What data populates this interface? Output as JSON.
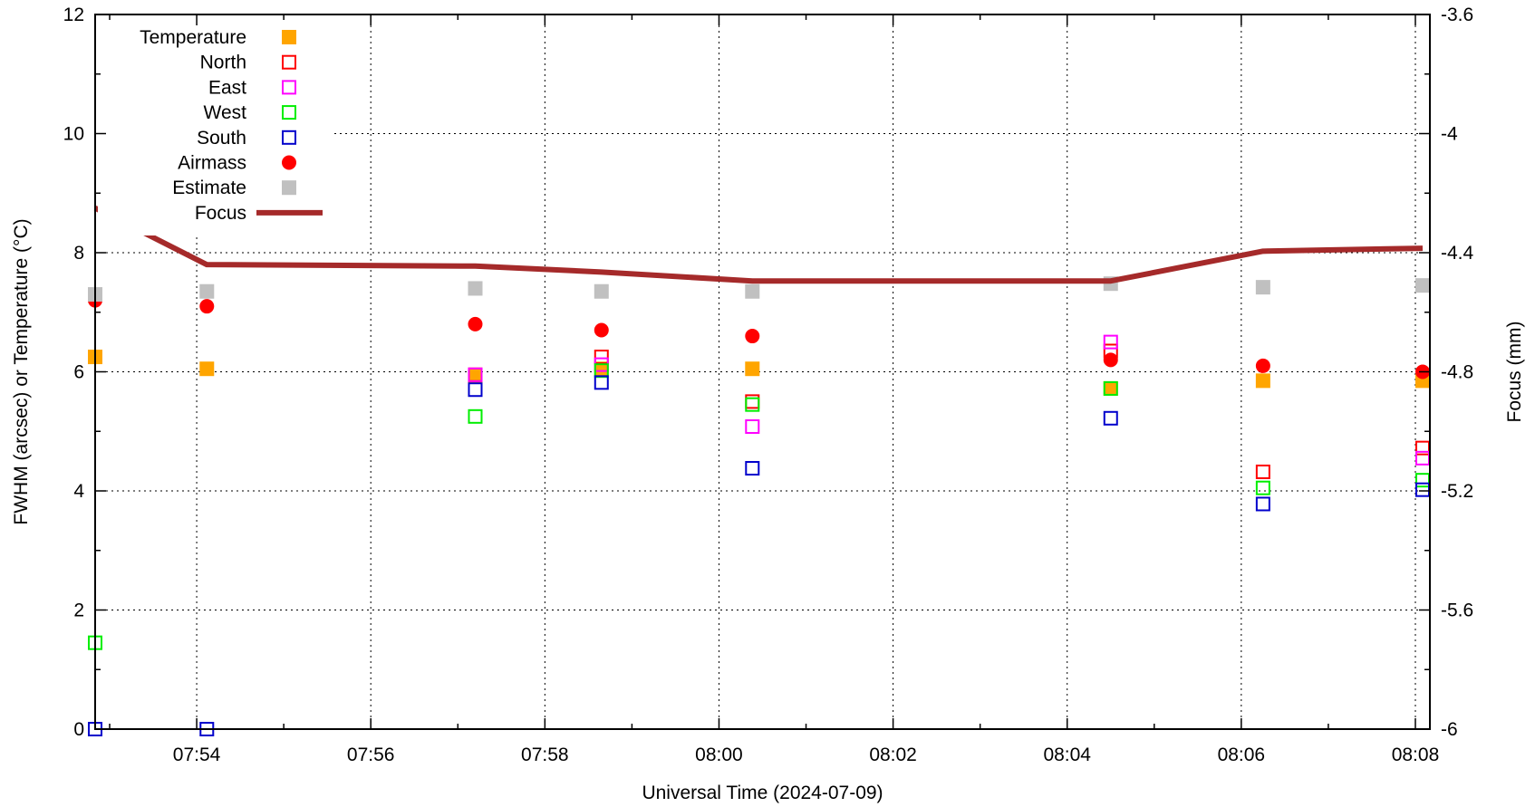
{
  "chart_data": {
    "type": "scatter",
    "xlabel": "Universal Time (2024-07-09)",
    "ylabel": "FWHM (arcsec) or Temperature (°C)",
    "y2label": "Focus (mm)",
    "xlim": [
      "07:52:50",
      "08:08:10"
    ],
    "ylim": [
      0,
      12
    ],
    "y2lim": [
      -6,
      -3.6
    ],
    "grid": true,
    "legend_position": "top-left",
    "x_ticks": [
      "07:54",
      "07:56",
      "07:58",
      "08:00",
      "08:02",
      "08:04",
      "08:06",
      "08:08"
    ],
    "y_ticks": [
      "0",
      "2",
      "4",
      "6",
      "8",
      "10",
      "12"
    ],
    "y2_ticks": [
      "-6",
      "-5.6",
      "-5.2",
      "-4.8",
      "-4.4",
      "-4",
      "-3.6"
    ],
    "x": [
      "07:52:50",
      "07:54:07",
      "07:57:12",
      "07:58:39",
      "08:00:23",
      "08:04:30",
      "08:06:15",
      "08:08:05"
    ],
    "series": [
      {
        "name": "Temperature",
        "marker": "filled-square",
        "color": "#ffa500",
        "axis": "y1",
        "values": [
          6.25,
          6.05,
          5.92,
          6.05,
          6.05,
          5.72,
          5.85,
          5.85
        ]
      },
      {
        "name": "North",
        "marker": "open-square",
        "color": "#ff0000",
        "axis": "y1",
        "values": [
          null,
          null,
          5.95,
          6.25,
          5.5,
          6.35,
          4.32,
          4.72
        ]
      },
      {
        "name": "East",
        "marker": "open-square",
        "color": "#ff00ff",
        "axis": "y1",
        "values": [
          null,
          null,
          5.95,
          6.12,
          5.08,
          6.5,
          null,
          4.55
        ]
      },
      {
        "name": "West",
        "marker": "open-square",
        "color": "#00ee00",
        "axis": "y1",
        "values": [
          1.45,
          null,
          5.25,
          6.02,
          5.45,
          5.72,
          4.05,
          4.18
        ]
      },
      {
        "name": "South",
        "marker": "open-square",
        "color": "#0000cc",
        "axis": "y1",
        "values": [
          0.0,
          0.0,
          5.7,
          5.82,
          4.38,
          5.22,
          3.78,
          4.02
        ]
      },
      {
        "name": "Airmass",
        "marker": "filled-circle",
        "color": "#ff0000",
        "axis": "y1",
        "values": [
          7.2,
          7.1,
          6.8,
          6.7,
          6.6,
          6.2,
          6.1,
          6.0
        ]
      },
      {
        "name": "Estimate",
        "marker": "filled-square",
        "color": "#c0c0c0",
        "axis": "y1",
        "values": [
          7.3,
          7.35,
          7.4,
          7.35,
          7.35,
          7.48,
          7.42,
          7.45
        ]
      },
      {
        "name": "Focus",
        "marker": "line",
        "color": "#a52a2a",
        "axis": "y2",
        "values": [
          -4.25,
          -4.44,
          -4.445,
          -4.465,
          -4.495,
          -4.495,
          -4.395,
          -4.385
        ]
      }
    ]
  }
}
